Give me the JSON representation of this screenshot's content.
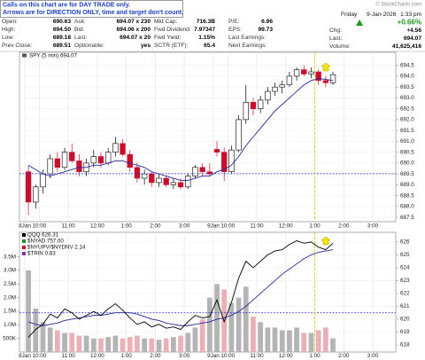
{
  "header": {
    "notice": [
      "Calls on this chart are for DAY TRADE only.",
      "Arrows are for DIRECTION ONLY, time and target don't count."
    ],
    "watermark": "© StockCharts.com",
    "date": [
      "Friday",
      "9-Jan-2026",
      "1:33 pm"
    ],
    "change_pct": "+0.66%",
    "rows": [
      [
        "Open:",
        "690.63",
        "Ask:",
        "694.07 x 230",
        "Mkt Cap:",
        "716.3B",
        "P/E:",
        "6.96"
      ],
      [
        "High:",
        "694.50",
        "Bid:",
        "694.06 x 200",
        "Fwd Dividend:",
        "7.97347",
        "EPS:",
        "99.73"
      ],
      [
        "Low:",
        "689.18",
        "Last:",
        "694.07 x 20",
        "Fwd Yield:",
        "1.15%",
        "Last Earnings:"
      ],
      [
        "Prev Close:",
        "689.51",
        "Optionable:",
        "yes",
        "SCTR (ETF):",
        "65.4",
        "Next Earnings:"
      ]
    ],
    "right": [
      [
        "Chg:",
        "+4.56"
      ],
      [
        "Last:",
        "694.07"
      ],
      [
        "Volume:",
        "41,625,416"
      ]
    ]
  },
  "chart_data": [
    {
      "type": "candlestick",
      "title": "SPY (5 min) 694.07",
      "x": [
        1.5,
        4.5,
        7.5,
        10.5,
        13.5,
        16.5,
        19.5,
        22.5,
        25.5,
        28.5,
        31.5,
        34.5,
        37.5,
        40.5,
        43.5,
        46.5,
        49.5,
        52.5,
        55.5,
        58.5,
        61.5,
        64.5,
        67.5,
        70.5,
        73.5,
        76.5,
        79.5,
        82.5,
        85.5,
        88.5,
        91.5,
        94.5,
        97.5,
        100.5,
        103.5,
        106.5,
        109.5,
        112.5,
        115.5,
        118.5,
        121.5,
        124.5,
        127.5
      ],
      "open": [
        689.6,
        688.2,
        688.9,
        689.5,
        690.2,
        689.8,
        690.5,
        690.1,
        689.6,
        690.0,
        690.3,
        690.0,
        690.5,
        690.9,
        690.4,
        689.8,
        689.3,
        689.5,
        689.1,
        689.3,
        689.0,
        689.1,
        688.9,
        689.4,
        689.8,
        689.6,
        690.63,
        690.5,
        689.6,
        690.6,
        692.0,
        692.8,
        692.5,
        692.9,
        693.3,
        693.5,
        693.6,
        694.0,
        694.3,
        694.1,
        694.2,
        693.8,
        693.7
      ],
      "high": [
        689.9,
        689.0,
        689.7,
        690.4,
        690.5,
        690.7,
        690.9,
        690.4,
        690.2,
        690.6,
        690.5,
        690.7,
        691.2,
        691.1,
        690.6,
        690.0,
        689.7,
        689.6,
        689.5,
        689.4,
        689.3,
        689.3,
        689.5,
        689.9,
        690.0,
        690.0,
        691.0,
        690.7,
        690.8,
        692.2,
        693.6,
        693.0,
        693.1,
        693.5,
        693.7,
        693.8,
        694.2,
        694.4,
        694.5,
        694.4,
        694.3,
        694.0,
        694.2
      ],
      "low": [
        687.6,
        687.9,
        688.6,
        689.3,
        689.6,
        689.7,
        690.0,
        689.4,
        689.4,
        689.8,
        689.8,
        689.9,
        690.3,
        690.3,
        689.6,
        689.1,
        689.0,
        688.9,
        688.9,
        688.9,
        688.8,
        688.8,
        688.8,
        689.3,
        689.4,
        689.4,
        690.3,
        689.18,
        689.5,
        690.5,
        691.8,
        692.2,
        692.3,
        692.7,
        693.1,
        693.2,
        693.5,
        693.8,
        694.0,
        693.9,
        693.6,
        693.5,
        693.6
      ],
      "close": [
        688.2,
        688.9,
        689.5,
        690.2,
        689.8,
        690.5,
        690.1,
        689.6,
        690.0,
        690.3,
        690.0,
        690.5,
        690.9,
        690.4,
        689.8,
        689.3,
        689.5,
        689.1,
        689.3,
        689.0,
        689.1,
        688.9,
        689.4,
        689.8,
        689.6,
        689.5,
        690.5,
        689.6,
        690.6,
        692.0,
        692.8,
        692.5,
        692.9,
        693.3,
        693.5,
        693.6,
        694.0,
        694.3,
        694.1,
        694.2,
        693.8,
        693.7,
        694.07
      ],
      "up_color": "#ffffff",
      "down_color": "#c8102e",
      "average": {
        "color": "#27279a",
        "values": [
          689.9,
          689.7,
          689.5,
          689.4,
          689.5,
          689.6,
          689.7,
          689.8,
          689.8,
          689.9,
          689.9,
          690.0,
          690.1,
          690.1,
          690.0,
          689.9,
          689.8,
          689.6,
          689.5,
          689.4,
          689.3,
          689.2,
          689.2,
          689.3,
          689.4,
          689.4,
          689.6,
          689.7,
          689.9,
          690.3,
          690.8,
          691.2,
          691.6,
          692.0,
          692.4,
          692.7,
          693.0,
          693.3,
          693.6,
          693.8,
          693.9,
          693.85,
          693.8
        ]
      },
      "prev_close": 689.51,
      "prev_close_color": "#2b2bd0",
      "xlim": [
        -2.2,
        153.5
      ],
      "ylim": [
        687.3,
        695.1
      ],
      "xticks": [
        {
          "value": 0,
          "label": "8Jan"
        },
        {
          "value": 6,
          "label": "10:00"
        },
        {
          "value": 18,
          "label": "11:00"
        },
        {
          "value": 30,
          "label": "12:00"
        },
        {
          "value": 42,
          "label": "1:00"
        },
        {
          "value": 54,
          "label": "2:00"
        },
        {
          "value": 66,
          "label": "3:00"
        },
        {
          "value": 78,
          "label": "9Jan"
        },
        {
          "value": 84,
          "label": "10:00"
        },
        {
          "value": 96,
          "label": "11:00"
        },
        {
          "value": 108,
          "label": "12:00"
        },
        {
          "value": 120,
          "label": "1:00"
        },
        {
          "value": 132,
          "label": "2:00"
        },
        {
          "value": 144,
          "label": "3:00"
        }
      ],
      "yticks": [
        {
          "value": 687.5,
          "label": "687.5"
        },
        {
          "value": 688,
          "label": "688.0"
        },
        {
          "value": 688.5,
          "label": "688.5"
        },
        {
          "value": 689,
          "label": "689.0"
        },
        {
          "value": 689.5,
          "label": "689.5"
        },
        {
          "value": 690,
          "label": "690.0"
        },
        {
          "value": 690.5,
          "label": "690.5"
        },
        {
          "value": 691,
          "label": "691.0"
        },
        {
          "value": 691.5,
          "label": "691.5"
        },
        {
          "value": 692,
          "label": "692.0"
        },
        {
          "value": 692.5,
          "label": "692.5"
        },
        {
          "value": 693,
          "label": "693.0"
        },
        {
          "value": 693.5,
          "label": "693.5"
        },
        {
          "value": 694,
          "label": "694.0"
        },
        {
          "value": 694.5,
          "label": "694.5"
        }
      ],
      "grid": true
    },
    {
      "type": "volume_price",
      "legend": [
        "QQQ 626.31",
        "$NYAD 757.00",
        "$NYUPV/$NYDNV 2.14",
        "$TRIN 0.83"
      ],
      "legend_colors": [
        "#000000",
        "#2b8a2b",
        "#c8102e",
        "#7a3aa0"
      ],
      "x": [
        1.5,
        4.5,
        7.5,
        10.5,
        13.5,
        16.5,
        19.5,
        22.5,
        25.5,
        28.5,
        31.5,
        34.5,
        37.5,
        40.5,
        43.5,
        46.5,
        49.5,
        52.5,
        55.5,
        58.5,
        61.5,
        64.5,
        67.5,
        70.5,
        73.5,
        76.5,
        79.5,
        82.5,
        85.5,
        88.5,
        91.5,
        94.5,
        97.5,
        100.5,
        103.5,
        106.5,
        109.5,
        112.5,
        115.5,
        118.5,
        121.5,
        124.5,
        127.5
      ],
      "volume": {
        "values": [
          3000000,
          1600000,
          1100000,
          900000,
          800000,
          700000,
          700000,
          600000,
          600000,
          500000,
          500000,
          550000,
          600000,
          500000,
          550000,
          600000,
          500000,
          500000,
          450000,
          500000,
          550000,
          600000,
          700000,
          900000,
          1200000,
          2000000,
          2500000,
          2300000,
          1800000,
          2000000,
          2400000,
          1300000,
          1100000,
          900000,
          900000,
          800000,
          800000,
          900000,
          700000,
          700000,
          800000,
          900000,
          500000
        ],
        "up_color": "#b4b4b4",
        "down_color": "#eab0b8",
        "ylim": [
          0,
          4400000
        ],
        "yticks": [
          {
            "value": 500000,
            "label": "500K"
          },
          {
            "value": 1000000,
            "label": "1.0M"
          },
          {
            "value": 1500000,
            "label": "1.5M"
          },
          {
            "value": 2000000,
            "label": "2.0M"
          },
          {
            "value": 2500000,
            "label": "2.5M"
          },
          {
            "value": 3000000,
            "label": "3.0M"
          },
          {
            "value": 3500000,
            "label": "3.5M"
          }
        ]
      },
      "price": {
        "color": "#000000",
        "values": [
          618.6,
          619.2,
          619.6,
          620.4,
          620.1,
          620.8,
          620.5,
          620.0,
          620.3,
          620.6,
          620.3,
          620.8,
          621.2,
          620.7,
          620.1,
          619.6,
          619.8,
          619.4,
          619.6,
          619.3,
          619.4,
          619.2,
          619.8,
          620.3,
          620.1,
          620.2,
          621.5,
          619.8,
          621.3,
          623.2,
          624.5,
          624.0,
          624.5,
          625.0,
          625.3,
          625.4,
          625.8,
          626.1,
          625.9,
          626.0,
          625.6,
          625.4,
          625.9
        ]
      },
      "average": {
        "color": "#27279a",
        "values": [
          619.8,
          619.6,
          619.5,
          619.6,
          619.7,
          619.9,
          620.0,
          620.1,
          620.2,
          620.3,
          620.3,
          620.4,
          620.5,
          620.5,
          620.5,
          620.4,
          620.2,
          620.0,
          619.9,
          619.7,
          619.6,
          619.5,
          619.5,
          619.6,
          619.7,
          619.8,
          620.0,
          620.1,
          620.3,
          620.6,
          621.0,
          621.5,
          622.0,
          622.5,
          623.0,
          623.5,
          623.9,
          624.3,
          624.7,
          625.0,
          625.2,
          625.3,
          625.4
        ]
      },
      "prev_close": 620.5,
      "prev_close_color": "#2b2bd0",
      "xlim": [
        -2.2,
        153.5
      ],
      "ylim": [
        617.45,
        626.75
      ],
      "xticks": [
        {
          "value": 0,
          "label": "8Jan"
        },
        {
          "value": 6,
          "label": "10:00"
        },
        {
          "value": 18,
          "label": "11:00"
        },
        {
          "value": 30,
          "label": "12:00"
        },
        {
          "value": 42,
          "label": "1:00"
        },
        {
          "value": 54,
          "label": "2:00"
        },
        {
          "value": 66,
          "label": "3:00"
        },
        {
          "value": 78,
          "label": "9Jan"
        },
        {
          "value": 84,
          "label": "10:00"
        },
        {
          "value": 96,
          "label": "11:00"
        },
        {
          "value": 108,
          "label": "12:00"
        },
        {
          "value": 120,
          "label": "1:00"
        },
        {
          "value": 132,
          "label": "2:00"
        },
        {
          "value": 144,
          "label": "3:00"
        }
      ],
      "yticks": [
        618,
        619,
        620,
        621,
        622,
        623,
        624,
        625,
        626
      ],
      "grid": true
    }
  ]
}
